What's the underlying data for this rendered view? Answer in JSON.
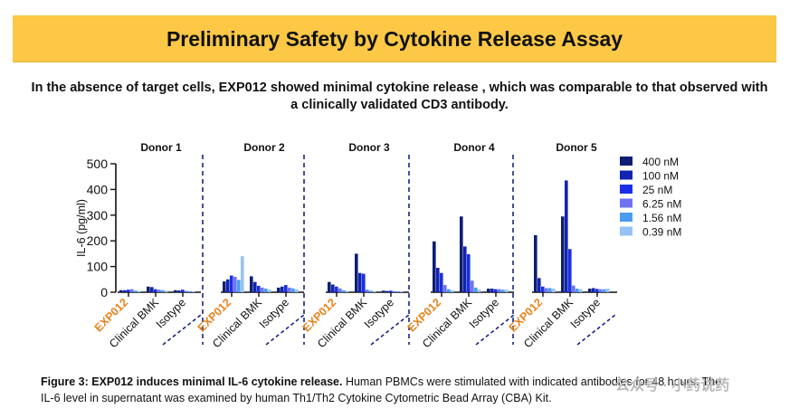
{
  "header": {
    "title": "Preliminary Safety by Cytokine Release Assay",
    "subtitle_line1": "In the absence of target cells, EXP012 showed minimal cytokine release , which was comparable to that observed with",
    "subtitle_line2": "a clinically validated CD3 antibody."
  },
  "caption": {
    "lead": "Figure 3: EXP012 induces minimal IL-6 cytokine release.",
    "line1_rest": " Human PBMCs were stimulated with indicated antibodies for 48 hours. The",
    "line2": "IL-6 level in supernatant was examined by human Th1/Th2 Cytokine Cytometric Bead Array (CBA) Kit."
  },
  "watermark": "公众号 · 小药说药",
  "colors": {
    "banner": "#fcc845",
    "exp012_label": "#e8821c",
    "divider": "#1a237e",
    "series": [
      "#0c1e73",
      "#1223b0",
      "#1a2fe6",
      "#6f73f2",
      "#4a9bf0",
      "#96c2f7"
    ]
  },
  "chart_data": {
    "type": "bar",
    "ylabel": "IL-6 (pg/ml)",
    "ylim": [
      0,
      500
    ],
    "yticks": [
      0,
      100,
      200,
      300,
      400,
      500
    ],
    "legend_position": "right",
    "groups": [
      "EXP012",
      "Clinical BMK",
      "Isotype"
    ],
    "series": [
      {
        "name": "400 nM",
        "color": "#0c1e73"
      },
      {
        "name": "100 nM",
        "color": "#1223b0"
      },
      {
        "name": "25 nM",
        "color": "#1a2fe6"
      },
      {
        "name": "6.25 nM",
        "color": "#6f73f2"
      },
      {
        "name": "1.56 nM",
        "color": "#4a9bf0"
      },
      {
        "name": "0.39 nM",
        "color": "#96c2f7"
      }
    ],
    "donors": [
      {
        "name": "Donor 1",
        "values": [
          [
            8,
            8,
            10,
            12,
            6,
            5
          ],
          [
            22,
            20,
            12,
            10,
            8,
            6
          ],
          [
            8,
            7,
            10,
            5,
            4,
            3
          ]
        ]
      },
      {
        "name": "Donor 2",
        "values": [
          [
            42,
            50,
            65,
            60,
            48,
            140
          ],
          [
            62,
            40,
            25,
            18,
            14,
            10
          ],
          [
            18,
            22,
            28,
            18,
            15,
            12
          ]
        ]
      },
      {
        "name": "Donor 3",
        "values": [
          [
            40,
            30,
            22,
            15,
            8,
            5
          ],
          [
            150,
            75,
            72,
            10,
            6,
            4
          ],
          [
            6,
            5,
            6,
            4,
            3,
            3
          ]
        ]
      },
      {
        "name": "Donor 4",
        "values": [
          [
            198,
            95,
            75,
            28,
            12,
            8
          ],
          [
            295,
            178,
            148,
            45,
            18,
            10
          ],
          [
            14,
            14,
            12,
            12,
            10,
            10
          ]
        ]
      },
      {
        "name": "Donor 5",
        "values": [
          [
            222,
            55,
            22,
            16,
            16,
            14
          ],
          [
            295,
            435,
            168,
            26,
            14,
            12
          ],
          [
            14,
            16,
            13,
            12,
            12,
            14
          ]
        ]
      }
    ]
  }
}
